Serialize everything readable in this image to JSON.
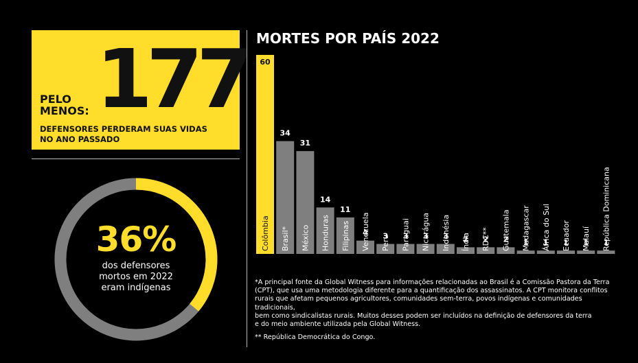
{
  "highlight": {
    "number": "177",
    "prefix_line1": "PELO",
    "prefix_line2": "MENOS:",
    "caption_line1": "DEFENSORES PERDERAM SUAS VIDAS",
    "caption_line2": "NO ANO PASSADO"
  },
  "donut": {
    "percent_label": "36%",
    "percent_value": 36,
    "caption_line1": "dos defensores",
    "caption_line2": "mortos em 2022",
    "caption_line3": "eram indígenas",
    "colors": {
      "highlight": "#ffdd2a",
      "rest": "#7f7f7f"
    }
  },
  "chart_data": {
    "type": "bar",
    "title": "MORTES POR PAÍS 2022",
    "categories": [
      "Colômbia",
      "Brasil*",
      "México",
      "Honduras",
      "Filipinas",
      "Venezuela",
      "Peru",
      "Paraguai",
      "Nicarágua",
      "Indonésia",
      "Índia",
      "RDC**",
      "Guatemala",
      "Madagascar",
      "África do Sul",
      "Ecuador",
      "Malauí",
      "República Dominicana"
    ],
    "values": [
      60,
      34,
      31,
      14,
      11,
      4,
      3,
      3,
      3,
      3,
      2,
      2,
      2,
      1,
      1,
      1,
      1,
      1
    ],
    "value_labels": [
      "60",
      "34",
      "31",
      "14",
      "11",
      "4",
      "3",
      "3",
      "3",
      "3",
      "2",
      "2",
      "2",
      "1",
      "1",
      "1",
      "1",
      "1"
    ],
    "ylim": [
      0,
      60
    ],
    "grid": false,
    "colors": {
      "highlight": "#ffdd2a",
      "default": "#7f7f7f"
    }
  },
  "footnotes": {
    "note1_line1": "*A principal fonte da Global Witness para informações relacionadas ao Brasil é a Comissão Pastora da Terra",
    "note1_line2": "(CPT), que usa uma metodologia diferente para a quantificação dos assassinatos. A CPT monitora conflitos",
    "note1_line3": "rurais que afetam pequenos agricultores, comunidades sem-terra, povos indígenas e comunidades tradicionais,",
    "note1_line4": "bem como sindicalistas rurais. Muitos desses podem ser incluídos na definição de defensores da terra",
    "note1_line5": "e do meio ambiente utilizada pela Global Witness.",
    "note2": "** República Democrática do Congo."
  }
}
